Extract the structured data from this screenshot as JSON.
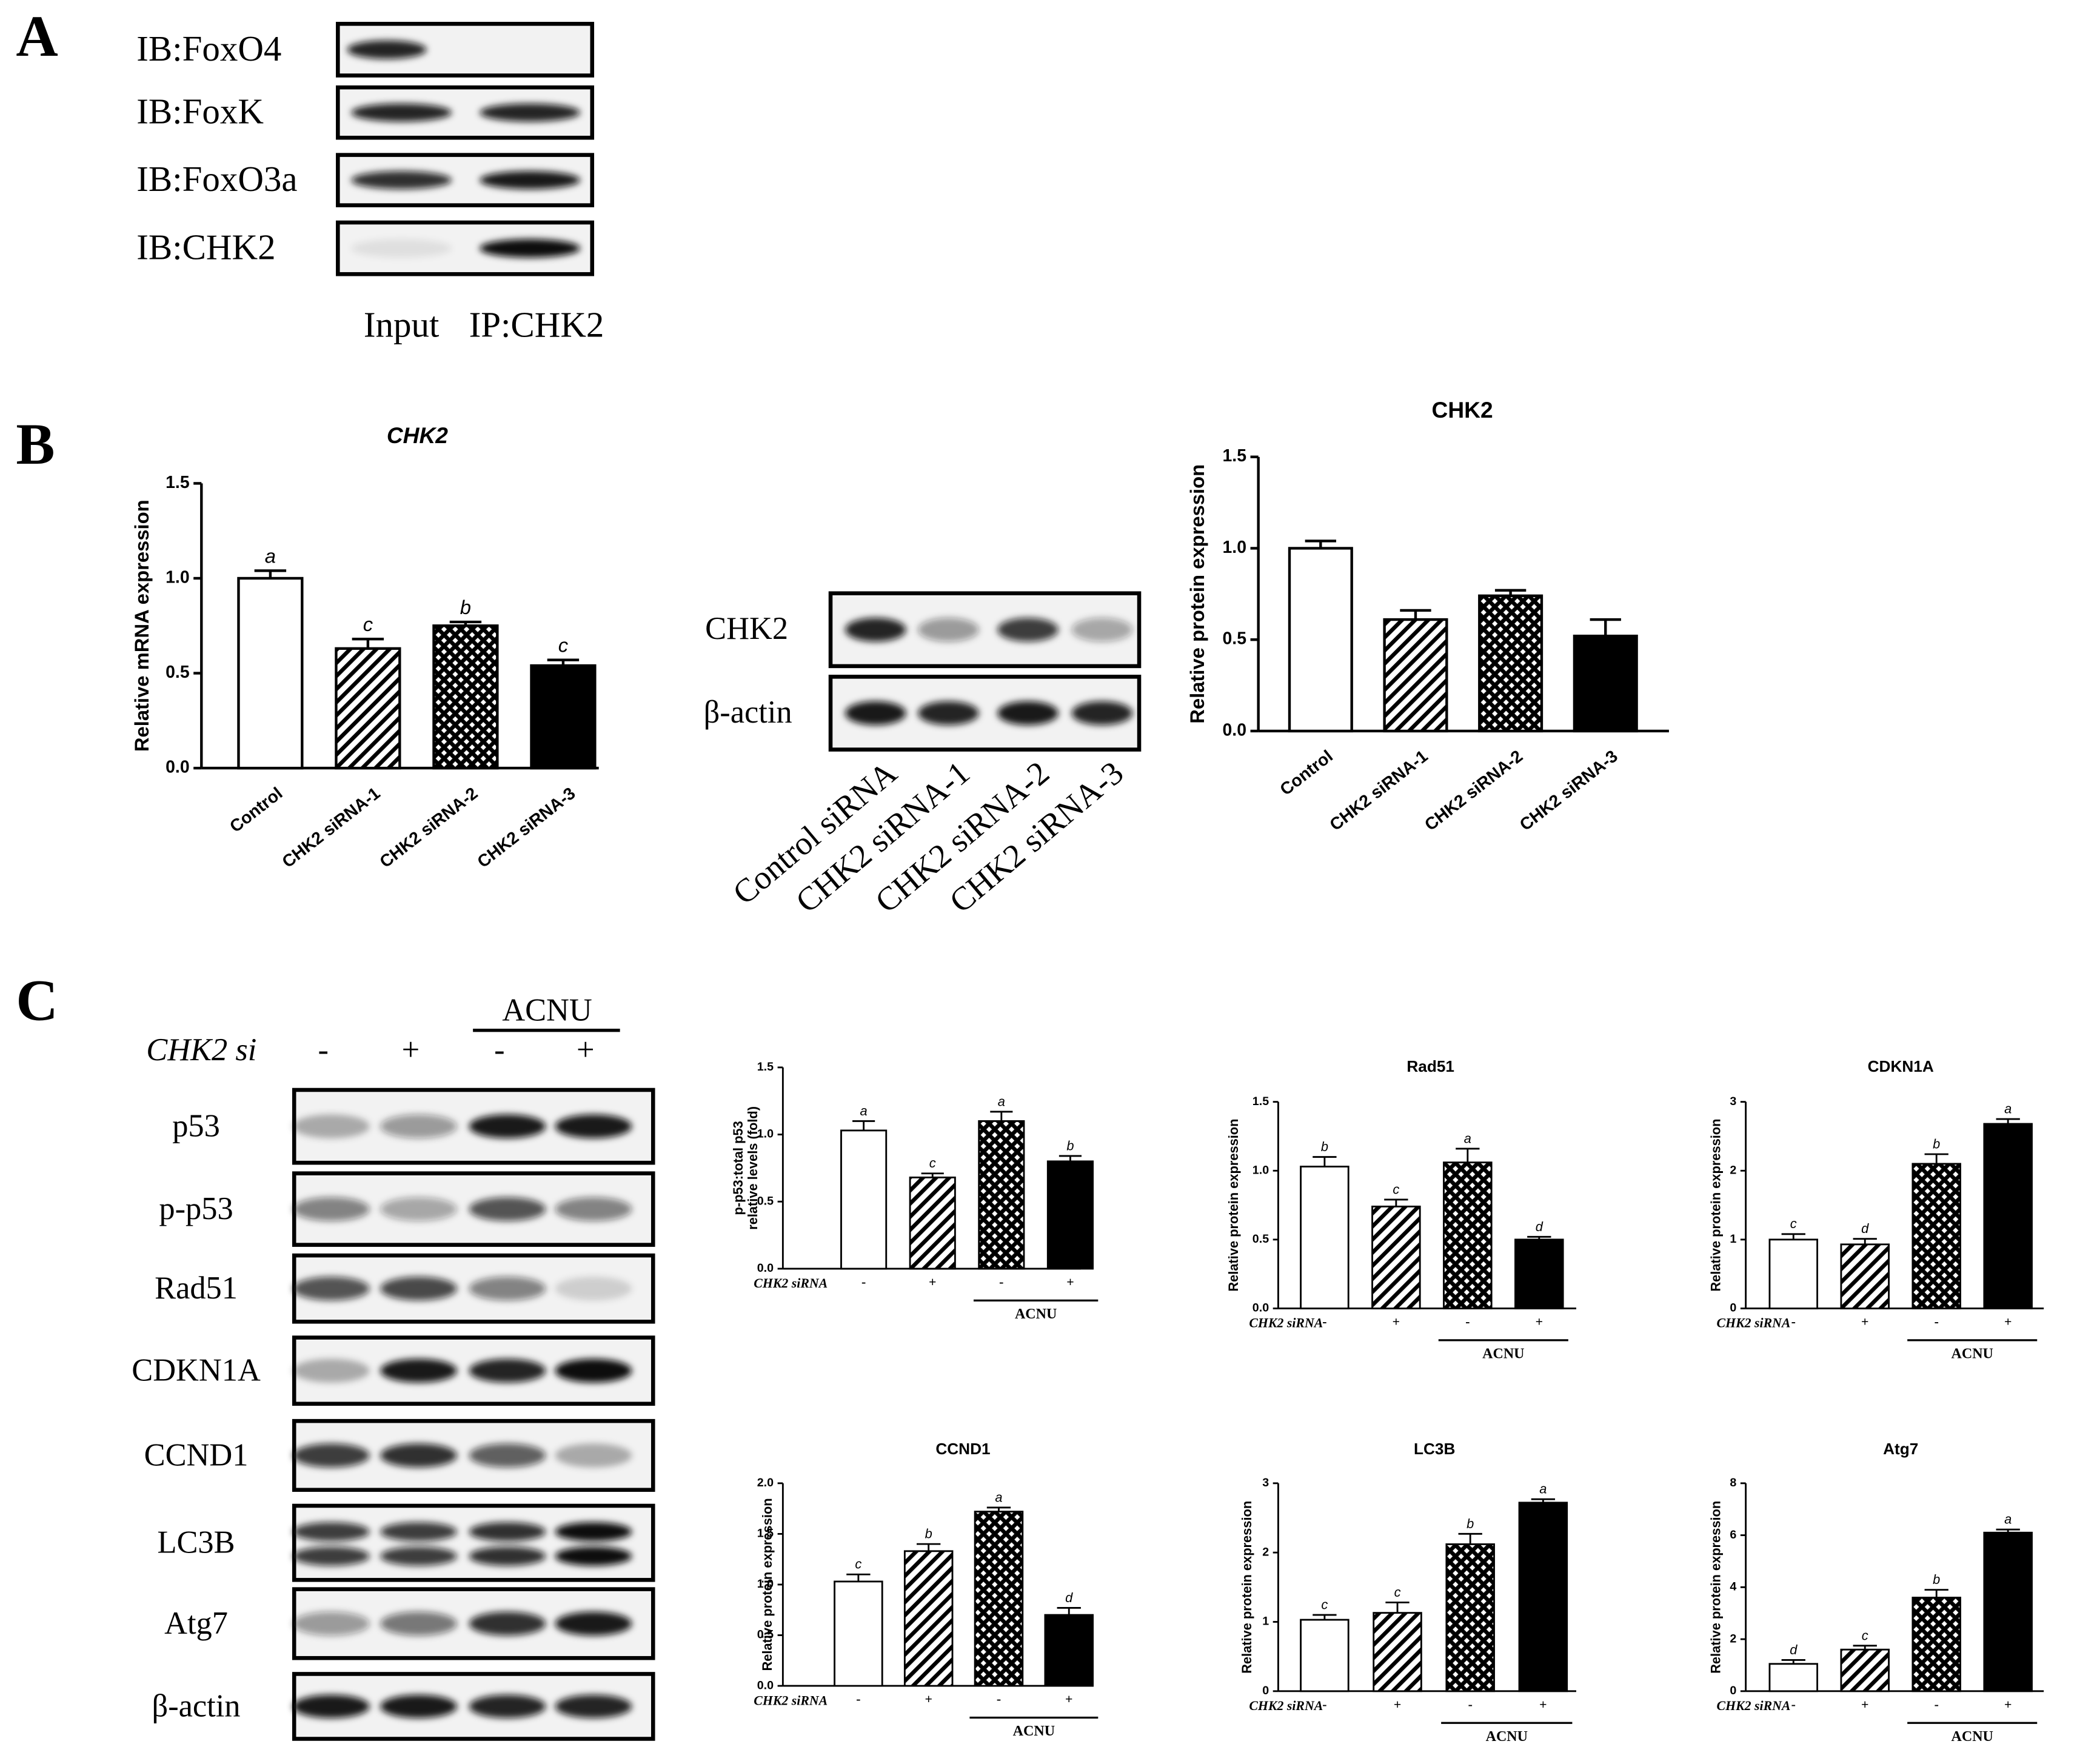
{
  "panel_labels": [
    "A",
    "B",
    "C"
  ],
  "blot_a": {
    "rows": [
      "IB:FoxO4",
      "IB:FoxK",
      "IB:FoxO3a",
      "IB:CHK2"
    ],
    "lanes": [
      "Input",
      "IP:CHK2"
    ]
  },
  "blot_b": {
    "rows": [
      "CHK2",
      "β-actin"
    ],
    "lanes": [
      "Control siRNA",
      "CHK2 siRNA-1",
      "CHK2 siRNA-2",
      "CHK2 siRNA-3"
    ]
  },
  "blot_c": {
    "row_label": "CHK2 si",
    "signs": [
      "-",
      "+",
      "-",
      "+"
    ],
    "treatment": "ACNU",
    "rows": [
      "p53",
      "p-p53",
      "Rad51",
      "CDKN1A",
      "CCND1",
      "LC3B",
      "Atg7",
      "β-actin"
    ]
  },
  "chart_data": [
    {
      "type": "bar",
      "title": "CHK2",
      "y_label": "Relative mRNA expression",
      "categories": [
        "Control",
        "CHK2 siRNA-1",
        "CHK2 siRNA-2",
        "CHK2 siRNA-3"
      ],
      "values": [
        1.0,
        0.63,
        0.75,
        0.54
      ],
      "errors": [
        0.04,
        0.05,
        0.02,
        0.03
      ],
      "annotations": [
        "a",
        "c",
        "b",
        "c"
      ],
      "fills": [
        "none",
        "diagonal",
        "cross",
        "solid"
      ],
      "color": "#000000",
      "ylim": [
        0,
        1.5
      ],
      "yticks": [
        {
          "value": 0,
          "label": "0.0"
        },
        {
          "value": 0.5,
          "label": "0.5"
        },
        {
          "value": 1,
          "label": "1.0"
        },
        {
          "value": 1.5,
          "label": "1.5"
        }
      ]
    },
    {
      "type": "bar",
      "title": "CHK2",
      "y_label": "Relative protein expression",
      "categories": [
        "Control",
        "CHK2 siRNA-1",
        "CHK2 siRNA-2",
        "CHK2 siRNA-3"
      ],
      "values": [
        1.0,
        0.61,
        0.74,
        0.52
      ],
      "errors": [
        0.04,
        0.05,
        0.03,
        0.09
      ],
      "fills": [
        "none",
        "diagonal",
        "cross",
        "solid"
      ],
      "color": "#000000",
      "ylim": [
        0,
        1.5
      ],
      "yticks": [
        {
          "value": 0,
          "label": "0.0"
        },
        {
          "value": 0.5,
          "label": "0.5"
        },
        {
          "value": 1,
          "label": "1.0"
        },
        {
          "value": 1.5,
          "label": "1.5"
        }
      ]
    },
    {
      "type": "bar",
      "y_label": [
        "p-p53:total p53",
        "relative levels (fold)"
      ],
      "categories": [
        "-",
        "+",
        "-",
        "+"
      ],
      "group_label": "CHK2 siRNA",
      "bracket_label": "ACNU",
      "values": [
        1.03,
        0.68,
        1.1,
        0.8
      ],
      "errors": [
        0.07,
        0.03,
        0.07,
        0.04
      ],
      "annotations": [
        "a",
        "c",
        "a",
        "b"
      ],
      "fills": [
        "none",
        "diagonal",
        "cross",
        "solid"
      ],
      "color": "#000000",
      "ylim": [
        0,
        1.5
      ],
      "yticks": [
        {
          "value": 0,
          "label": "0.0"
        },
        {
          "value": 0.5,
          "label": "0.5"
        },
        {
          "value": 1,
          "label": "1.0"
        },
        {
          "value": 1.5,
          "label": "1.5"
        }
      ]
    },
    {
      "type": "bar",
      "title": "Rad51",
      "y_label": "Relative protein expression",
      "categories": [
        "-",
        "+",
        "-",
        "+"
      ],
      "group_label": "CHK2 siRNA",
      "bracket_label": "ACNU",
      "values": [
        1.03,
        0.74,
        1.06,
        0.5
      ],
      "errors": [
        0.07,
        0.05,
        0.1,
        0.02
      ],
      "annotations": [
        "b",
        "c",
        "a",
        "d"
      ],
      "fills": [
        "none",
        "diagonal",
        "cross",
        "solid"
      ],
      "color": "#000000",
      "ylim": [
        0,
        1.5
      ],
      "yticks": [
        {
          "value": 0,
          "label": "0.0"
        },
        {
          "value": 0.5,
          "label": "0.5"
        },
        {
          "value": 1,
          "label": "1.0"
        },
        {
          "value": 1.5,
          "label": "1.5"
        }
      ]
    },
    {
      "type": "bar",
      "title": "CDKN1A",
      "y_label": "Relative protein expression",
      "categories": [
        "-",
        "+",
        "-",
        "+"
      ],
      "group_label": "CHK2 siRNA",
      "bracket_label": "ACNU",
      "values": [
        1.0,
        0.93,
        2.1,
        2.68
      ],
      "errors": [
        0.08,
        0.08,
        0.14,
        0.07
      ],
      "annotations": [
        "c",
        "d",
        "b",
        "a"
      ],
      "fills": [
        "none",
        "diagonal",
        "cross",
        "solid"
      ],
      "color": "#000000",
      "ylim": [
        0,
        3
      ],
      "yticks": [
        0,
        1,
        2,
        3
      ]
    },
    {
      "type": "bar",
      "title": "CCND1",
      "y_label": "Relative protein expression",
      "categories": [
        "-",
        "+",
        "-",
        "+"
      ],
      "group_label": "CHK2 siRNA",
      "bracket_label": "ACNU",
      "values": [
        1.03,
        1.33,
        1.72,
        0.7
      ],
      "errors": [
        0.07,
        0.07,
        0.04,
        0.07
      ],
      "annotations": [
        "c",
        "b",
        "a",
        "d"
      ],
      "fills": [
        "none",
        "diagonal",
        "cross",
        "solid"
      ],
      "color": "#000000",
      "ylim": [
        0,
        2
      ],
      "yticks": [
        {
          "value": 0,
          "label": "0.0"
        },
        {
          "value": 0.5,
          "label": "0.5"
        },
        {
          "value": 1,
          "label": "1.0"
        },
        {
          "value": 1.5,
          "label": "1.5"
        },
        {
          "value": 2,
          "label": "2.0"
        }
      ]
    },
    {
      "type": "bar",
      "title": "LC3B",
      "y_label": "Relative protein expression",
      "categories": [
        "-",
        "+",
        "-",
        "+"
      ],
      "group_label": "CHK2 siRNA",
      "bracket_label": "ACNU",
      "values": [
        1.03,
        1.13,
        2.12,
        2.72
      ],
      "errors": [
        0.07,
        0.15,
        0.15,
        0.05
      ],
      "annotations": [
        "c",
        "c",
        "b",
        "a"
      ],
      "fills": [
        "none",
        "diagonal",
        "cross",
        "solid"
      ],
      "color": "#000000",
      "ylim": [
        0,
        3
      ],
      "yticks": [
        0,
        1,
        2,
        3
      ]
    },
    {
      "type": "bar",
      "title": "Atg7",
      "y_label": "Relative protein expression",
      "categories": [
        "-",
        "+",
        "-",
        "+"
      ],
      "group_label": "CHK2 siRNA",
      "bracket_label": "ACNU",
      "values": [
        1.05,
        1.6,
        3.6,
        6.1
      ],
      "errors": [
        0.15,
        0.15,
        0.3,
        0.12
      ],
      "annotations": [
        "d",
        "c",
        "b",
        "a"
      ],
      "fills": [
        "none",
        "diagonal",
        "cross",
        "solid"
      ],
      "color": "#000000",
      "ylim": [
        0,
        8
      ],
      "yticks": [
        0,
        2,
        4,
        6,
        8
      ]
    }
  ]
}
